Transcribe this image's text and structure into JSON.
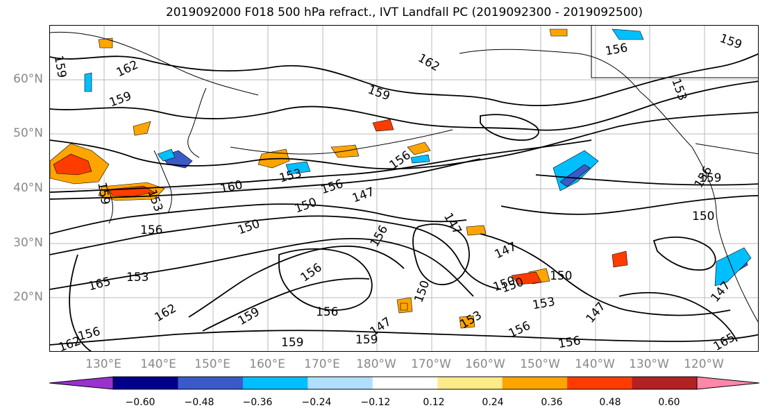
{
  "title": "2019092000 F018 500 hPa refract., IVT Landfall PC (2019092300 - 2019092500)",
  "lat_labels": [
    "60°N",
    "50°N",
    "40°N",
    "30°N",
    "20°N"
  ],
  "lon_labels": [
    "130°E",
    "140°E",
    "150°E",
    "160°E",
    "170°E",
    "180°W",
    "170°W",
    "160°W",
    "150°W",
    "140°W",
    "130°W",
    "120°W"
  ],
  "colorbar": {
    "colors": [
      "#9932CC",
      "#00008B",
      "#3A5BC7",
      "#00BFFF",
      "#B0E0FF",
      "#FFFFFF",
      "#FFEB8A",
      "#FFA500",
      "#FF3C00",
      "#B22222",
      "#FF88AA"
    ],
    "ticks": [
      "−0.60",
      "−0.48",
      "−0.36",
      "−0.24",
      "−0.12",
      "0.12",
      "0.24",
      "0.36",
      "0.48",
      "0.60"
    ]
  },
  "contour_labels": [
    {
      "text": "159"
    },
    {
      "text": "162"
    },
    {
      "text": "159"
    },
    {
      "text": "162"
    },
    {
      "text": "156"
    },
    {
      "text": "159"
    },
    {
      "text": "159"
    },
    {
      "text": "153"
    },
    {
      "text": "159"
    },
    {
      "text": "153"
    },
    {
      "text": "160"
    },
    {
      "text": "156"
    },
    {
      "text": "150"
    },
    {
      "text": "147"
    },
    {
      "text": "156"
    },
    {
      "text": "156"
    },
    {
      "text": "150"
    },
    {
      "text": "147"
    },
    {
      "text": "156"
    },
    {
      "text": "147"
    },
    {
      "text": "156"
    },
    {
      "text": "150"
    },
    {
      "text": "150"
    },
    {
      "text": "159"
    },
    {
      "text": "156"
    },
    {
      "text": "162"
    },
    {
      "text": "165"
    },
    {
      "text": "153"
    },
    {
      "text": "156"
    },
    {
      "text": "150"
    },
    {
      "text": "153"
    },
    {
      "text": "147"
    },
    {
      "text": "150"
    },
    {
      "text": "153"
    },
    {
      "text": "156"
    },
    {
      "text": "147"
    },
    {
      "text": "156"
    },
    {
      "text": "159"
    },
    {
      "text": "162"
    },
    {
      "text": "147"
    },
    {
      "text": "150"
    },
    {
      "text": "156"
    },
    {
      "text": "159"
    },
    {
      "text": "165"
    },
    {
      "text": "159"
    },
    {
      "text": "153"
    }
  ]
}
